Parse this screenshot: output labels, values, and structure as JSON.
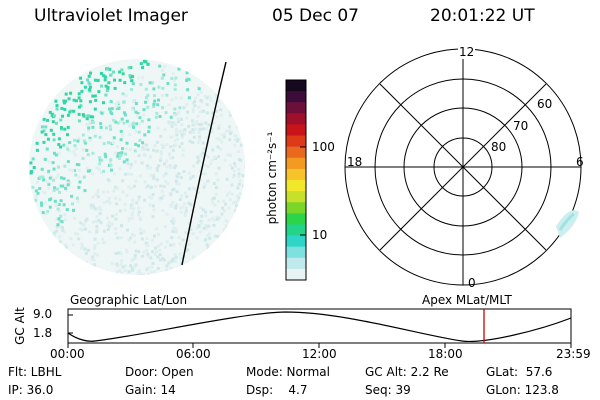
{
  "header": {
    "instrument": "Ultraviolet Imager",
    "date": "05 Dec 07",
    "time": "20:01:22 UT"
  },
  "colorbar": {
    "unit_label": "photon cm⁻²s⁻¹",
    "ticks": [
      "100",
      "10"
    ],
    "colors": [
      "#e8f4f4",
      "#bfe9ea",
      "#7fe0e0",
      "#2fd6c8",
      "#22d48a",
      "#2cd44a",
      "#7bd62a",
      "#c8e02a",
      "#f2e82a",
      "#f7c22a",
      "#f39a22",
      "#e96a1e",
      "#dd3a1a",
      "#c8141a",
      "#a0102a",
      "#6e0f3a",
      "#3c0c3a",
      "#16081f"
    ]
  },
  "image_panel": {
    "left_label": "Geographic Lat/Lon"
  },
  "polar_panel": {
    "right_label": "Apex MLat/MLT",
    "mlt_labels": {
      "top": "12",
      "left": "18",
      "right": "6",
      "bottom": "0"
    },
    "lat_labels": [
      "60",
      "70",
      "80"
    ]
  },
  "altitude_plot": {
    "ylabel": "GC Alt",
    "ytick_top": "9.0",
    "ytick_bottom": "1.8",
    "xticks": [
      "00:00",
      "06:00",
      "12:00",
      "18:00",
      "23:59"
    ]
  },
  "status": {
    "row1": {
      "flt": "Flt: LBHL",
      "door": "Door: Open",
      "mode": "Mode: Normal",
      "gc_alt": "GC Alt: 2.2 Re",
      "glat": "GLat:  57.6"
    },
    "row2": {
      "ip": "IP: 36.0",
      "gain": "Gain: 14",
      "dsp": "Dsp:    4.7",
      "seq": "Seq: 39",
      "glon": "GLon: 123.8"
    }
  }
}
